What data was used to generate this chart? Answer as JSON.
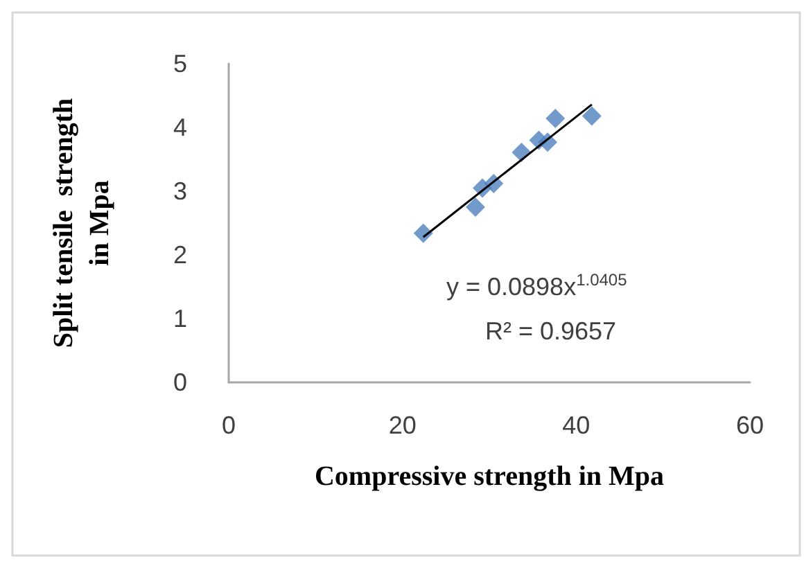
{
  "chart_data": {
    "type": "scatter",
    "xlabel": "Compressive strength in Mpa",
    "ylabel": "Split tensile  strength in Mpa",
    "marker": "diamond",
    "grid": false,
    "xlim": [
      0,
      60
    ],
    "xticks": [
      0,
      20,
      40,
      60
    ],
    "ylim": [
      0,
      5
    ],
    "yticks": [
      0,
      1,
      2,
      3,
      4,
      5
    ],
    "series": [
      {
        "color": "#4f81bd",
        "x": [
          22.4,
          28.4,
          29.2,
          30.5,
          33.7,
          35.7,
          36.7,
          37.6,
          41.8
        ],
        "values": [
          2.34,
          2.75,
          3.05,
          3.12,
          3.61,
          3.8,
          3.77,
          4.14,
          4.18
        ]
      },
      {
        "type": "line",
        "color": "#000000",
        "marker": "none",
        "x": [
          22.4,
          32,
          41.8
        ],
        "values": [
          2.28,
          3.31,
          4.36
        ]
      }
    ],
    "annotations": [
      "y = 0.0898x$^{1.0405}$",
      "R² = 0.9657"
    ]
  }
}
